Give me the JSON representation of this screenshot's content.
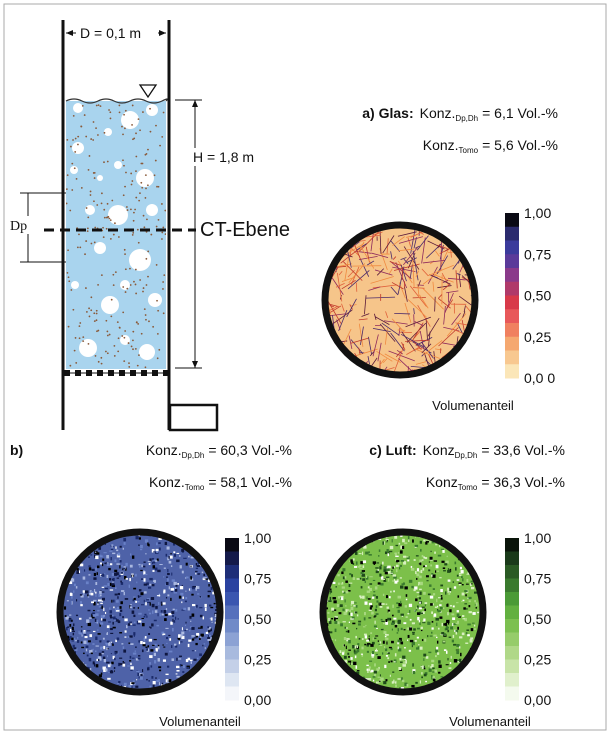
{
  "figure": {
    "column": {
      "diameter": "D = 0,1 m",
      "height": "H = 1,8 m",
      "dp": "Dp",
      "plane": "CT-Ebene"
    },
    "panels": [
      {
        "label": "a) Glas:",
        "konz1": "Konz.",
        "sub1": "Dp,Dh",
        "line1": "= 6,1 Vol.-%",
        "konz2": "Konz.",
        "sub2": "Tomo",
        "line2": "= 5,6 Vol.-%",
        "colorbar": {
          "ticks": [
            "1,00",
            "0,75",
            "0,50",
            "0,25",
            "0,0 0"
          ],
          "label": "Volumenanteil",
          "colors": [
            "#0a0a14",
            "#2b2b6e",
            "#3b3b9c",
            "#5a3a9a",
            "#8a3a8a",
            "#b03a6a",
            "#d83a4a",
            "#e8585a",
            "#f08060",
            "#f5a870",
            "#f8c890",
            "#fbe6b8"
          ]
        }
      },
      {
        "label": "b)",
        "konz1": "Konz.",
        "sub1": "Dp,Dh",
        "line1": "= 60,3 Vol.-%",
        "konz2": "Konz.",
        "sub2": "Tomo",
        "line2": "= 58,1 Vol.-%",
        "colorbar": {
          "ticks": [
            "1,00",
            "0,75",
            "0,50",
            "0,25",
            "0,00"
          ],
          "label": "Volumenanteil",
          "colors": [
            "#0a0a14",
            "#141a4a",
            "#1e2e78",
            "#2a42a0",
            "#3a56b0",
            "#5570bc",
            "#708ac8",
            "#8ca2d4",
            "#a8bade",
            "#c4d0e8",
            "#dee6f2",
            "#f4f6fa"
          ]
        }
      },
      {
        "label": "c) Luft:",
        "konz1": "Konz",
        "sub1": "Dp,Dh",
        "line1": "= 33,6 Vol.-%",
        "konz2": "Konz",
        "sub2": "Tomo",
        "line2": "= 36,3 Vol.-%",
        "colorbar": {
          "ticks": [
            "1,00",
            "0,75",
            "0,50",
            "0,25",
            "0,00"
          ],
          "label": "Volumenanteil",
          "colors": [
            "#0a140a",
            "#1a3a1a",
            "#2a5a24",
            "#3a7a2e",
            "#4a9a36",
            "#62b040",
            "#7cc050",
            "#96cc6a",
            "#b0d888",
            "#c8e4a8",
            "#e0f0cc",
            "#f4faee"
          ]
        }
      }
    ]
  }
}
